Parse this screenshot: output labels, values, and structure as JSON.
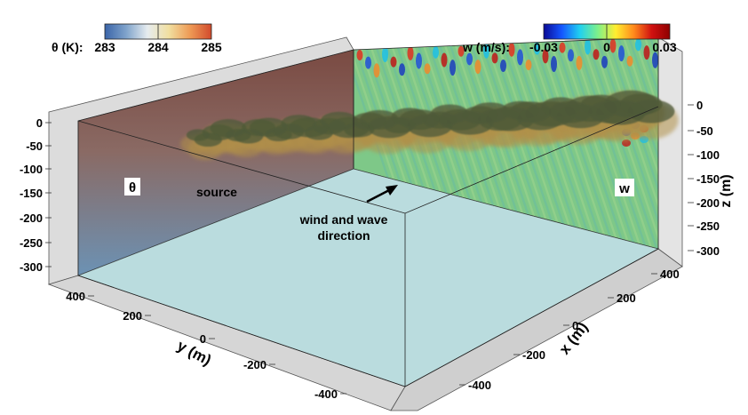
{
  "colorbars": {
    "theta": {
      "label": "θ (K):",
      "ticks": [
        "283",
        "284",
        "285"
      ],
      "colors": [
        "#3a64a8",
        "#7fa3cb",
        "#e6ecef",
        "#f1dfa0",
        "#ee9a55",
        "#d24a2c"
      ]
    },
    "w": {
      "label": "w (m/s):",
      "ticks": [
        "-0.03",
        "0",
        "0.03"
      ],
      "colors": [
        "#0a0a96",
        "#1456ff",
        "#20d0f0",
        "#7ef08a",
        "#ffee30",
        "#ff8a1c",
        "#d01010",
        "#8e0000"
      ]
    }
  },
  "panel_labels": {
    "theta": "θ",
    "w": "w",
    "source": "source",
    "direction_line1": "wind and wave",
    "direction_line2": "direction"
  },
  "axes": {
    "z": {
      "label": "z (m)",
      "ticks": [
        "0",
        "-50",
        "-100",
        "-150",
        "-200",
        "-250",
        "-300"
      ]
    },
    "y": {
      "label": "y (m)",
      "ticks": [
        "400",
        "200",
        "0",
        "-200",
        "-400"
      ]
    },
    "x": {
      "label": "x (m)",
      "ticks": [
        "400",
        "200",
        "0",
        "-200",
        "-400"
      ]
    }
  },
  "colors": {
    "floor": "#b4d8db",
    "theta_top": "#7a4a42",
    "theta_bottom": "#6c92b4",
    "w_background": "#7ec888",
    "plume": "#4d5a38",
    "plume_glow": "#b09048",
    "axis_plate": "#d8d8d8"
  }
}
